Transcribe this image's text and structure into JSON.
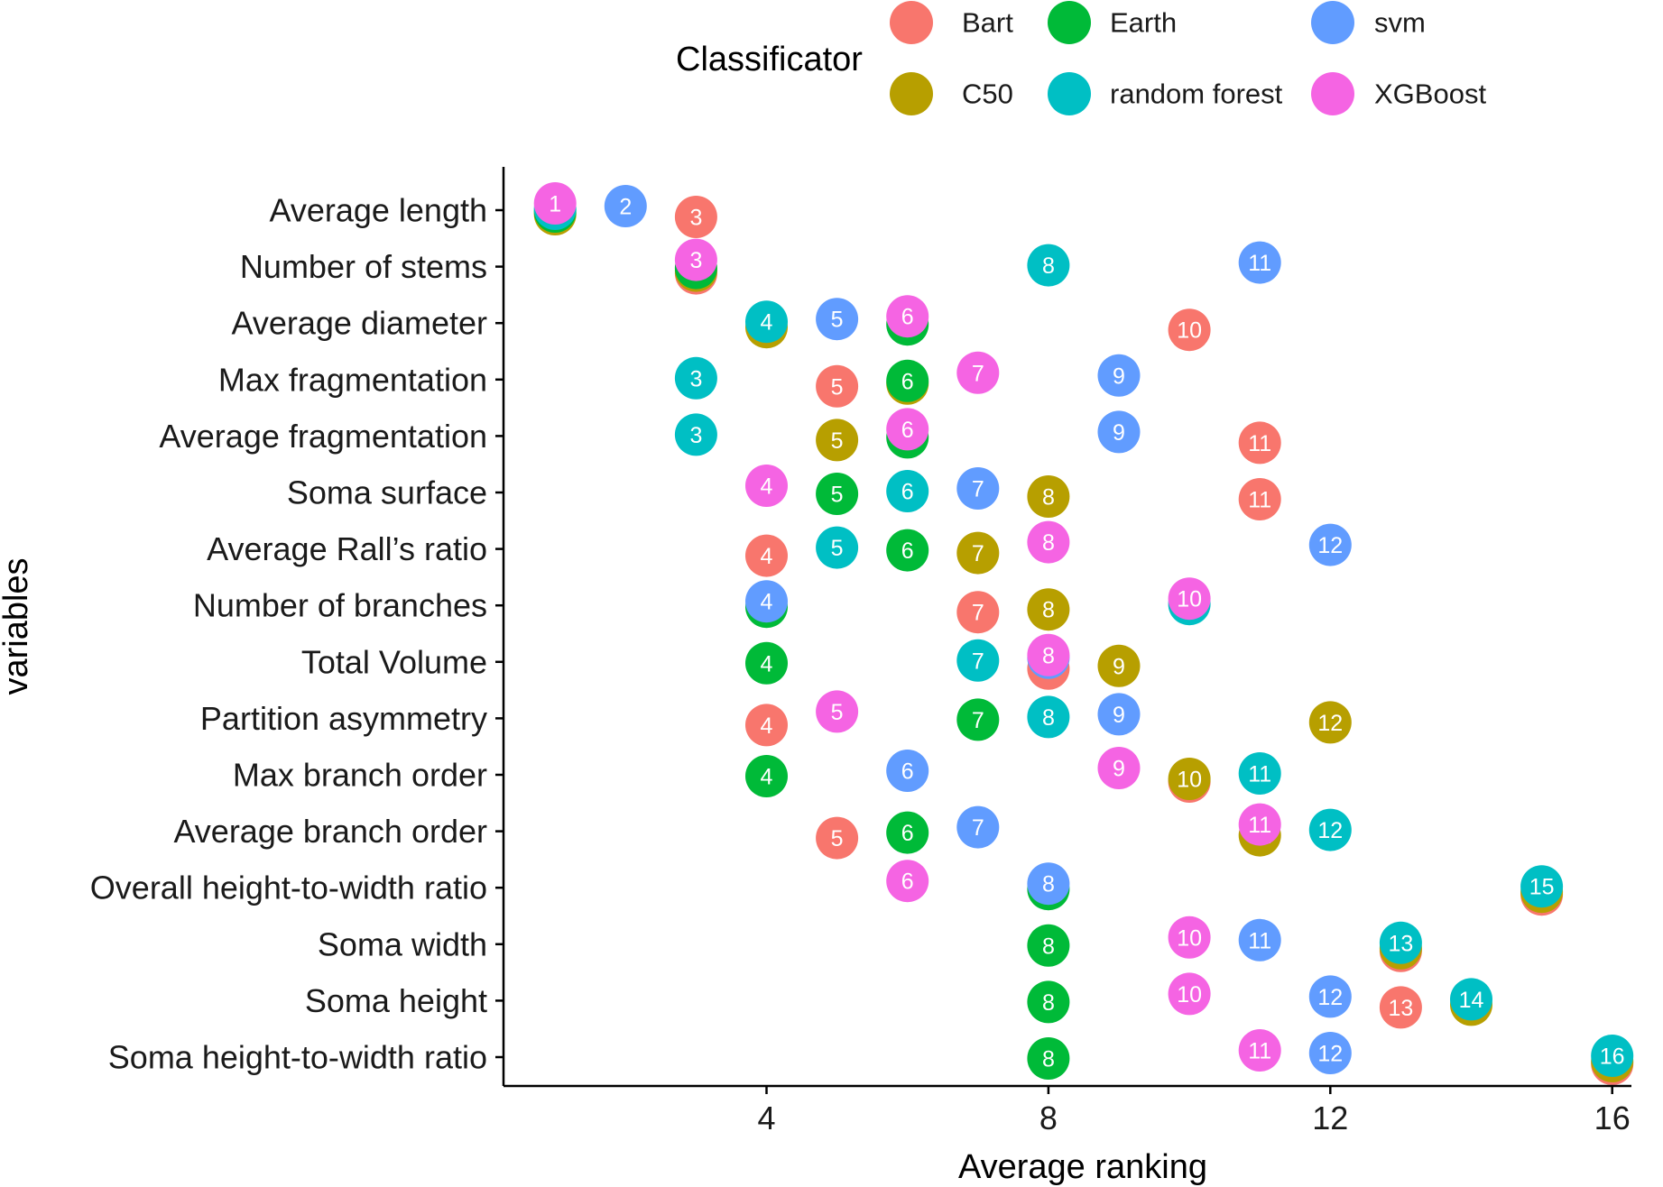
{
  "chart_data": {
    "type": "scatter",
    "xlabel": "Average ranking",
    "ylabel": "variables",
    "xlim": [
      0.2,
      16.8
    ],
    "xticks": [
      4,
      8,
      12,
      16
    ],
    "legend": {
      "title": "Classificator",
      "position": "top",
      "entries": [
        {
          "name": "Bart",
          "color": "#F8766D"
        },
        {
          "name": "C50",
          "color": "#B79F00"
        },
        {
          "name": "Earth",
          "color": "#00BA38"
        },
        {
          "name": "random forest",
          "color": "#00BFC4"
        },
        {
          "name": "svm",
          "color": "#619CFF"
        },
        {
          "name": "XGBoost",
          "color": "#F564E3"
        }
      ]
    },
    "categories": [
      "Average length",
      "Number of stems",
      "Average diameter",
      "Max fragmentation",
      "Average fragmentation",
      "Soma surface",
      "Average Rall’s ratio",
      "Number of branches",
      "Total Volume",
      "Partition asymmetry",
      "Max branch order",
      "Average branch order",
      "Overall height-to-width ratio",
      "Soma width",
      "Soma height",
      "Soma height-to-width ratio"
    ],
    "series": [
      {
        "name": "Bart",
        "values": [
          3,
          3,
          10,
          5,
          11,
          11,
          4,
          7,
          8,
          4,
          10,
          5,
          15,
          13,
          13,
          16
        ]
      },
      {
        "name": "C50",
        "values": [
          1,
          3,
          4,
          6,
          5,
          8,
          7,
          8,
          9,
          12,
          10,
          11,
          15,
          13,
          14,
          16
        ]
      },
      {
        "name": "Earth",
        "values": [
          1,
          3,
          6,
          6,
          6,
          5,
          6,
          4,
          4,
          7,
          4,
          6,
          8,
          8,
          8,
          8
        ]
      },
      {
        "name": "random forest",
        "values": [
          1,
          8,
          4,
          3,
          3,
          6,
          5,
          10,
          7,
          8,
          11,
          12,
          15,
          13,
          14,
          16
        ]
      },
      {
        "name": "svm",
        "values": [
          2,
          11,
          5,
          9,
          9,
          7,
          12,
          4,
          8,
          9,
          6,
          7,
          8,
          11,
          12,
          12
        ]
      },
      {
        "name": "XGBoost",
        "values": [
          1,
          3,
          6,
          7,
          6,
          4,
          8,
          10,
          8,
          5,
          9,
          11,
          6,
          10,
          10,
          11
        ]
      }
    ]
  }
}
